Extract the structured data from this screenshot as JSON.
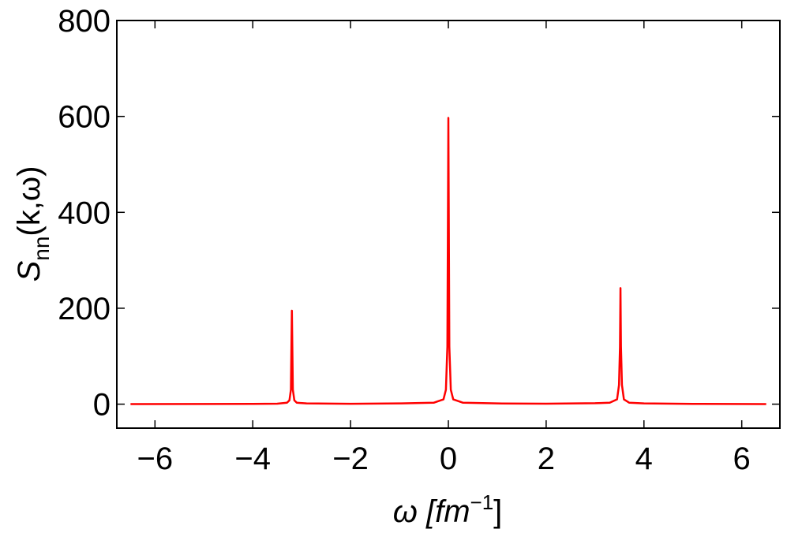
{
  "chart_data": {
    "type": "line",
    "xlabel": {
      "main": "ω [fm",
      "sup": "−1",
      "end": "]"
    },
    "ylabel": {
      "main": "S",
      "sub": "nn",
      "end": "(k,ω)"
    },
    "xlim": [
      -6.78,
      6.78
    ],
    "ylim": [
      -50,
      800
    ],
    "xticks": [
      {
        "value": -6,
        "label": "−6"
      },
      {
        "value": -4,
        "label": "−4"
      },
      {
        "value": -2,
        "label": "−2"
      },
      0,
      2,
      4,
      6
    ],
    "yticks": [
      0,
      200,
      400,
      600,
      800
    ],
    "x": [
      -6.5,
      -5,
      -4,
      -3.5,
      -3.3,
      -3.25,
      -3.22,
      -3.2,
      -3.18,
      -3.15,
      -3.1,
      -2.9,
      -2,
      -1,
      -0.3,
      -0.1,
      -0.05,
      -0.02,
      0,
      0.02,
      0.05,
      0.1,
      0.3,
      1,
      2,
      3,
      3.3,
      3.45,
      3.49,
      3.51,
      3.52,
      3.53,
      3.55,
      3.59,
      3.7,
      4,
      5,
      6.5
    ],
    "series": [
      {
        "color": "#ff0000",
        "values": [
          0.2,
          0.3,
          0.5,
          1,
          3,
          8,
          30,
          195,
          30,
          8,
          3,
          1.5,
          0.8,
          1.5,
          3,
          10,
          30,
          120,
          597,
          120,
          30,
          10,
          3,
          1.5,
          1,
          2,
          3,
          10,
          40,
          120,
          242,
          120,
          40,
          10,
          3,
          1.5,
          0.5,
          0.2
        ]
      }
    ]
  }
}
